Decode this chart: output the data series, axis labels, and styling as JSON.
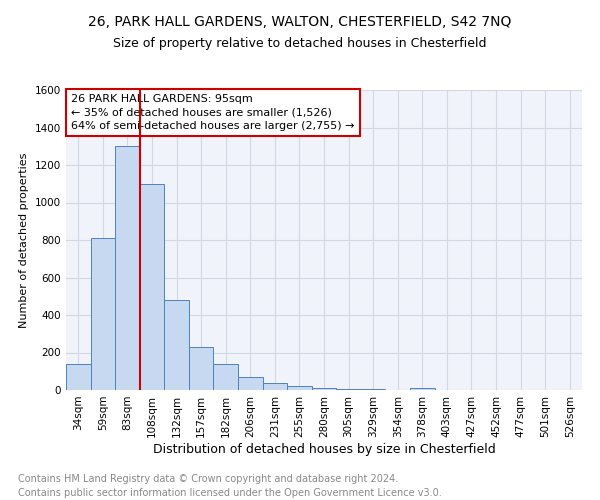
{
  "title1": "26, PARK HALL GARDENS, WALTON, CHESTERFIELD, S42 7NQ",
  "title2": "Size of property relative to detached houses in Chesterfield",
  "xlabel": "Distribution of detached houses by size in Chesterfield",
  "ylabel": "Number of detached properties",
  "footer": "Contains HM Land Registry data © Crown copyright and database right 2024.\nContains public sector information licensed under the Open Government Licence v3.0.",
  "categories": [
    "34sqm",
    "59sqm",
    "83sqm",
    "108sqm",
    "132sqm",
    "157sqm",
    "182sqm",
    "206sqm",
    "231sqm",
    "255sqm",
    "280sqm",
    "305sqm",
    "329sqm",
    "354sqm",
    "378sqm",
    "403sqm",
    "427sqm",
    "452sqm",
    "477sqm",
    "501sqm",
    "526sqm"
  ],
  "values": [
    140,
    810,
    1300,
    1100,
    480,
    230,
    140,
    70,
    40,
    20,
    10,
    5,
    3,
    2,
    10,
    1,
    1,
    0,
    0,
    0,
    0
  ],
  "bar_color": "#c6d9f0",
  "bar_edge_color": "#4f81bd",
  "annotation_line1": "26 PARK HALL GARDENS: 95sqm",
  "annotation_line2": "← 35% of detached houses are smaller (1,526)",
  "annotation_line3": "64% of semi-detached houses are larger (2,755) →",
  "red_color": "#cc0000",
  "ylim": [
    0,
    1600
  ],
  "yticks": [
    0,
    200,
    400,
    600,
    800,
    1000,
    1200,
    1400,
    1600
  ],
  "title1_fontsize": 10,
  "title2_fontsize": 9,
  "xlabel_fontsize": 9,
  "ylabel_fontsize": 8,
  "tick_fontsize": 7.5,
  "annotation_fontsize": 8,
  "footer_fontsize": 7,
  "grid_color": "#d0d8e4",
  "bg_color": "#f0f4fa"
}
